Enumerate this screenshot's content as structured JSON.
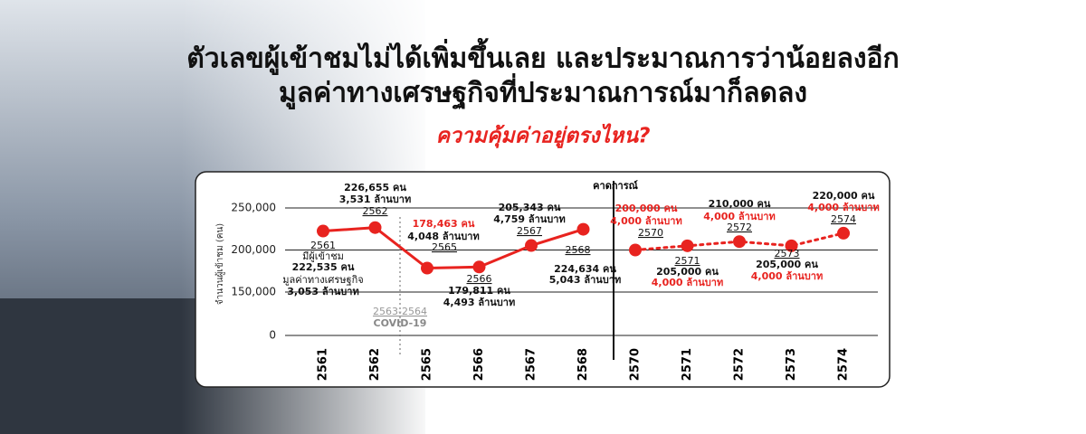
{
  "header": {
    "title_lines": [
      "ตัวเลขผู้เข้าชมไม่ได้เพิ่มขึ้นเลย และประมาณการว่าน้อยลงอีก",
      "มูลค่าทางเศรษฐกิจที่ประมาณการณ์มาก็ลดลง"
    ],
    "subtitle": "ความคุ้มค่าอยู่ตรงไหน?"
  },
  "chart_data": {
    "type": "line",
    "ylabel": "จำนวนผู้เข้าชม (คน)",
    "categories": [
      "2561",
      "2562",
      "2565",
      "2566",
      "2567",
      "2568",
      "2570",
      "2571",
      "2572",
      "2573",
      "2574"
    ],
    "series": [
      {
        "color": "#e8231f",
        "line_style": "solid",
        "values": [
          222535,
          226655,
          178463,
          179811,
          205343,
          224634,
          null,
          null,
          null,
          null,
          null
        ],
        "value_labels": [
          "222,535 คน",
          "226,655 คน",
          "178,463 คน",
          "179,811 คน",
          "205,343 คน",
          "224,634 คน",
          null,
          null,
          null,
          null,
          null
        ],
        "revenue_labels": [
          "3,053 ล้านบาท",
          "3,531 ล้านบาท",
          "4,048 ล้านบาท",
          "4,493 ล้านบาท",
          "4,759 ล้านบาท",
          "5,043 ล้านบาท",
          null,
          null,
          null,
          null,
          null
        ]
      },
      {
        "color": "#e8231f",
        "line_style": "dotted",
        "values": [
          null,
          null,
          null,
          null,
          null,
          null,
          200000,
          205000,
          210000,
          205000,
          220000
        ],
        "value_labels": [
          null,
          null,
          null,
          null,
          null,
          null,
          "200,000 คน",
          "205,000 คน",
          "210,000 คน",
          "205,000 คน",
          "220,000 คน"
        ],
        "revenue_labels": [
          null,
          null,
          null,
          null,
          null,
          null,
          "4,000 ล้านบาท",
          "4,000 ล้านบาท",
          "4,000 ล้านบาท",
          "4,000 ล้านบาท",
          "4,000 ล้านบาท"
        ]
      }
    ],
    "first_point_prefixes": [
      "มีผู้เข้าชม",
      "มูลค่าทางเศรษฐกิจ"
    ],
    "gap_annotation": [
      "2563-2564",
      "COVID-19"
    ],
    "forecast_label": "คาดการณ์",
    "ylim": [
      0,
      250000
    ],
    "yticks": [
      0,
      {
        "value": 150000,
        "label": "150,000"
      },
      {
        "value": 200000,
        "label": "200,000"
      },
      {
        "value": 250000,
        "label": "250,000"
      }
    ],
    "axis_break": true,
    "grid": true
  }
}
